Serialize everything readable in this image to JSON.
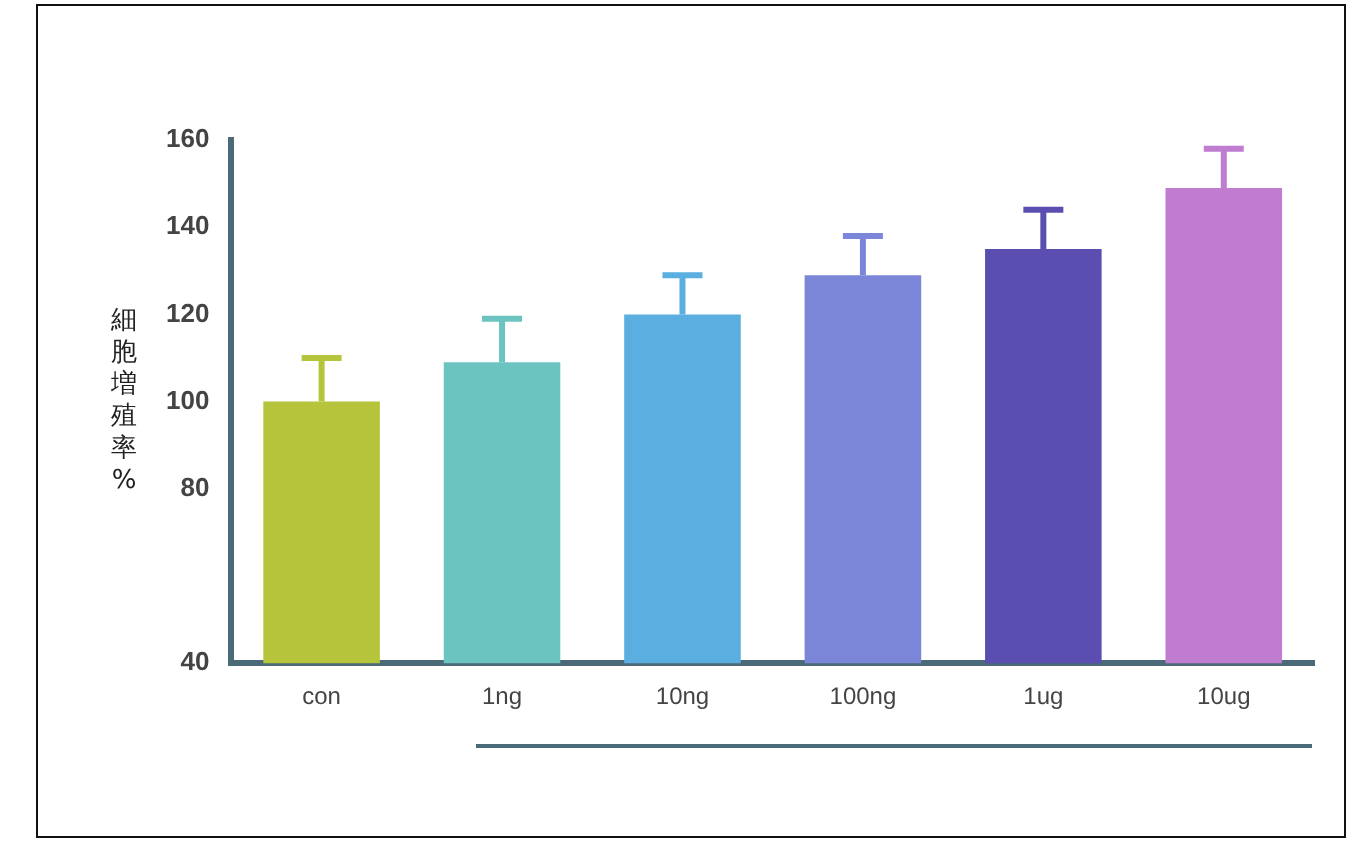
{
  "chart_data": {
    "type": "bar",
    "ylabel": "細胞増殖率%",
    "categories": [
      "con",
      "1ng",
      "10ng",
      "100ng",
      "1ug",
      "10ug"
    ],
    "values": [
      100,
      109,
      120,
      129,
      135,
      149
    ],
    "colors": [
      "#b5c43a",
      "#6cc4c0",
      "#5aaee0",
      "#7c86d8",
      "#5a4fb0",
      "#c07cd0"
    ],
    "errors": [
      10,
      10,
      9,
      9,
      9,
      9
    ],
    "ylim": [
      40,
      160
    ],
    "yticks": [
      40,
      80,
      100,
      120,
      140,
      160
    ],
    "grid": false,
    "legend": false
  }
}
